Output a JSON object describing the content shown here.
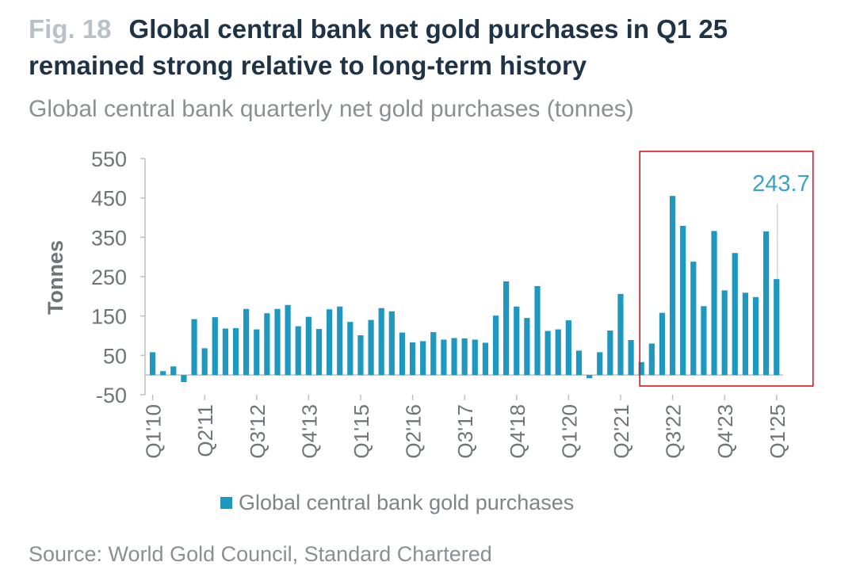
{
  "figure": {
    "label": "Fig. 18",
    "title": "Global central bank net gold purchases in Q1 25 remained strong relative to long-term history",
    "subtitle": "Global central bank quarterly net gold purchases (tonnes)",
    "source": "Source: World Gold Council, Standard Chartered"
  },
  "chart_data": {
    "type": "bar",
    "title": "",
    "xlabel": "",
    "ylabel": "Tonnes",
    "ylim": [
      -50,
      550
    ],
    "yticks": [
      -50,
      50,
      150,
      250,
      350,
      450,
      550
    ],
    "grid": false,
    "legend_position": "bottom",
    "bar_color": "#1f98c0",
    "label_color": "#3aa3c9",
    "highlight_color": "#e3101e",
    "categories": [
      "Q1'10",
      "Q2'10",
      "Q3'10",
      "Q4'10",
      "Q1'11",
      "Q2'11",
      "Q3'11",
      "Q4'11",
      "Q1'12",
      "Q2'12",
      "Q3'12",
      "Q4'12",
      "Q1'13",
      "Q2'13",
      "Q3'13",
      "Q4'13",
      "Q1'14",
      "Q2'14",
      "Q3'14",
      "Q4'14",
      "Q1'15",
      "Q2'15",
      "Q3'15",
      "Q4'15",
      "Q1'16",
      "Q2'16",
      "Q3'16",
      "Q4'16",
      "Q1'17",
      "Q2'17",
      "Q3'17",
      "Q4'17",
      "Q1'18",
      "Q2'18",
      "Q3'18",
      "Q4'18",
      "Q1'19",
      "Q2'19",
      "Q3'19",
      "Q4'19",
      "Q1'20",
      "Q2'20",
      "Q3'20",
      "Q4'20",
      "Q1'21",
      "Q2'21",
      "Q3'21",
      "Q4'21",
      "Q1'22",
      "Q2'22",
      "Q3'22",
      "Q4'22",
      "Q1'23",
      "Q2'23",
      "Q3'23",
      "Q4'23",
      "Q1'24",
      "Q2'24",
      "Q3'24",
      "Q4'24",
      "Q1'25"
    ],
    "tick_labels": [
      "Q1'10",
      "Q2'11",
      "Q3'12",
      "Q4'13",
      "Q1'15",
      "Q2'16",
      "Q3'17",
      "Q4'18",
      "Q1'20",
      "Q2'21",
      "Q3'22",
      "Q4'23",
      "Q1'25"
    ],
    "series": [
      {
        "name": "Global central bank gold purchases",
        "values": [
          58,
          10,
          22,
          -18,
          142,
          68,
          147,
          118,
          119,
          168,
          116,
          157,
          168,
          178,
          124,
          148,
          117,
          167,
          174,
          135,
          101,
          140,
          170,
          162,
          108,
          83,
          86,
          109,
          90,
          94,
          93,
          90,
          82,
          151,
          238,
          174,
          145,
          226,
          112,
          116,
          139,
          62,
          -8,
          58,
          113,
          206,
          89,
          33,
          80,
          158,
          455,
          379,
          288,
          175,
          366,
          215,
          310,
          209,
          198,
          365,
          243.7
        ]
      }
    ],
    "annotations": [
      {
        "text": "243.7",
        "category": "Q1'25"
      }
    ],
    "highlight": {
      "from": "Q4'21",
      "to": "Q1'25"
    },
    "legend": [
      "Global central bank gold purchases"
    ]
  }
}
